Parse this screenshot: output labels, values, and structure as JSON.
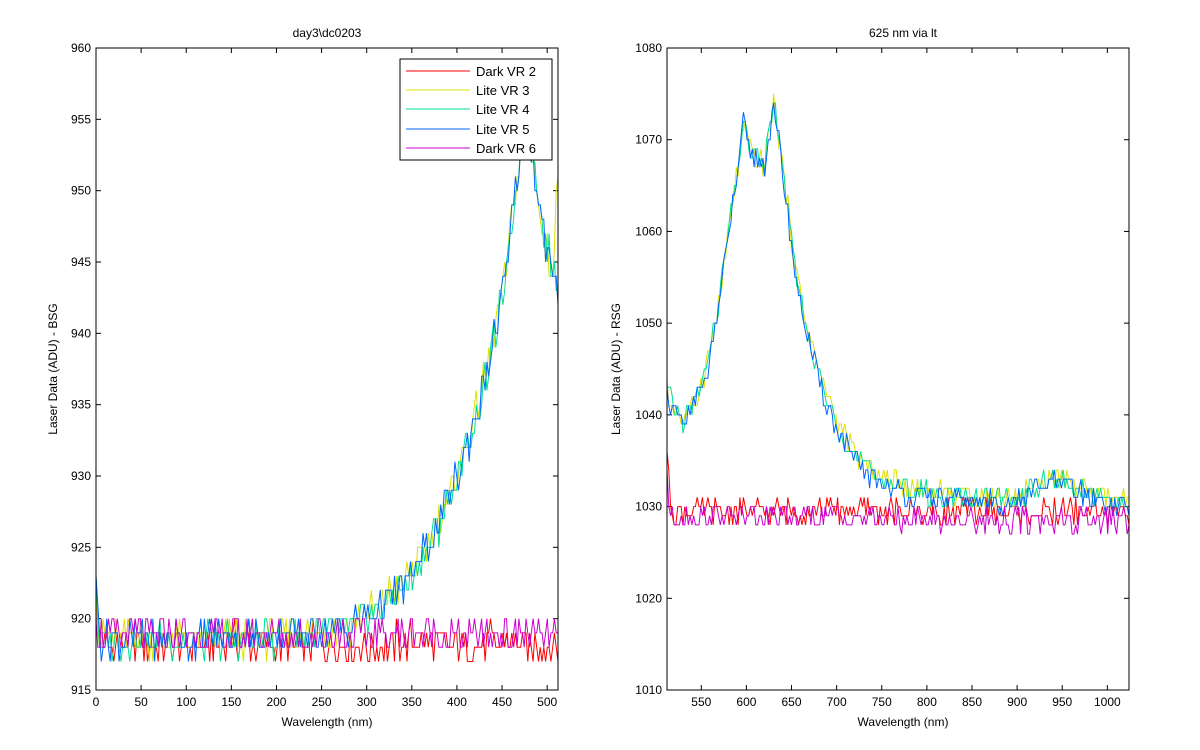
{
  "chart_data": [
    {
      "type": "line",
      "title": "day3\\dc0203",
      "xlabel": "Wavelength (nm)",
      "ylabel": "Laser Data (ADU) - BSG",
      "xlim": [
        0,
        512
      ],
      "ylim": [
        915,
        960
      ],
      "xticks": [
        0,
        50,
        100,
        150,
        200,
        250,
        300,
        350,
        400,
        450,
        500
      ],
      "yticks": [
        915,
        920,
        925,
        930,
        935,
        940,
        945,
        950,
        955,
        960
      ],
      "legend_position": "top-right",
      "grid": false,
      "series": [
        {
          "name": "Dark VR 2",
          "color": "#ff0000",
          "x": [
            0,
            2,
            10,
            50,
            100,
            150,
            200,
            250,
            300,
            350,
            400,
            450,
            500,
            512
          ],
          "y": [
            924,
            918.5,
            918.2,
            918.3,
            918.0,
            918.4,
            918.1,
            918.3,
            918.2,
            918.4,
            918.1,
            918.3,
            918.2,
            918.0
          ]
        },
        {
          "name": "Lite VR 3",
          "color": "#e0e000",
          "x": [
            0,
            3,
            50,
            100,
            150,
            200,
            250,
            280,
            300,
            320,
            340,
            360,
            380,
            400,
            420,
            440,
            455,
            465,
            475,
            485,
            495,
            505,
            512
          ],
          "y": [
            924,
            918.5,
            918.6,
            918.5,
            918.6,
            918.6,
            919.0,
            919.5,
            920.3,
            921.3,
            922.5,
            924.3,
            926.8,
            930.0,
            934.0,
            939.5,
            944.5,
            950.5,
            954.0,
            952.0,
            947.0,
            944.0,
            950.5
          ]
        },
        {
          "name": "Lite VR 4",
          "color": "#00e090",
          "x": [
            0,
            3,
            50,
            100,
            150,
            200,
            250,
            280,
            300,
            320,
            340,
            360,
            380,
            400,
            420,
            440,
            455,
            465,
            475,
            485,
            495,
            505,
            512
          ],
          "y": [
            924,
            918.4,
            918.6,
            918.5,
            918.6,
            918.6,
            919.0,
            919.4,
            920.1,
            921.0,
            922.2,
            924.0,
            926.5,
            929.8,
            933.8,
            939.2,
            944.0,
            950.0,
            954.5,
            952.5,
            947.5,
            944.5,
            943.5
          ]
        },
        {
          "name": "Lite VR 5",
          "color": "#0066ff",
          "x": [
            0,
            3,
            50,
            100,
            150,
            200,
            250,
            280,
            300,
            320,
            340,
            360,
            380,
            400,
            420,
            440,
            455,
            465,
            475,
            485,
            495,
            505,
            512
          ],
          "y": [
            924,
            918.5,
            918.7,
            918.6,
            918.7,
            918.7,
            919.1,
            919.5,
            920.2,
            921.1,
            922.3,
            924.1,
            926.6,
            929.9,
            933.9,
            939.3,
            944.2,
            950.2,
            954.2,
            952.2,
            947.2,
            944.2,
            943.0
          ]
        },
        {
          "name": "Dark VR 6",
          "color": "#cc00cc",
          "x": [
            0,
            2,
            10,
            50,
            100,
            150,
            200,
            250,
            300,
            350,
            400,
            450,
            500,
            512
          ],
          "y": [
            921,
            918.8,
            918.8,
            918.9,
            918.8,
            918.9,
            918.8,
            918.9,
            918.8,
            918.9,
            918.8,
            918.9,
            918.8,
            918.8
          ]
        }
      ]
    },
    {
      "type": "line",
      "title": "625 nm via lt",
      "xlabel": "Wavelength (nm)",
      "ylabel": "Laser Data (ADU) - RSG",
      "xlim": [
        512,
        1024
      ],
      "ylim": [
        1010,
        1080
      ],
      "xticks": [
        550,
        600,
        650,
        700,
        750,
        800,
        850,
        900,
        950,
        1000
      ],
      "yticks": [
        1010,
        1020,
        1030,
        1040,
        1050,
        1060,
        1070,
        1080
      ],
      "grid": false,
      "series": [
        {
          "name": "Dark VR 2",
          "color": "#ff0000",
          "x": [
            512,
            515,
            520,
            550,
            600,
            650,
            700,
            750,
            800,
            850,
            900,
            950,
            1000,
            1024
          ],
          "y": [
            1036,
            1031,
            1029.5,
            1029.5,
            1029.6,
            1029.5,
            1029.6,
            1029.5,
            1029.4,
            1029.5,
            1029.4,
            1029.5,
            1029.5,
            1029.3
          ]
        },
        {
          "name": "Lite VR 3",
          "color": "#e0e000",
          "x": [
            512,
            520,
            530,
            540,
            550,
            560,
            570,
            580,
            590,
            597,
            602,
            610,
            620,
            630,
            640,
            650,
            660,
            670,
            680,
            690,
            700,
            720,
            740,
            760,
            780,
            800,
            850,
            900,
            920,
            940,
            960,
            980,
            1000,
            1024
          ],
          "y": [
            1042.5,
            1040.5,
            1039.5,
            1041,
            1043.5,
            1047,
            1052.5,
            1060,
            1066.5,
            1071.5,
            1069.5,
            1068,
            1067,
            1074,
            1067.5,
            1059,
            1053,
            1048.5,
            1045,
            1042,
            1039.5,
            1036,
            1034,
            1032.8,
            1032.2,
            1031.8,
            1031.2,
            1031.0,
            1032.5,
            1033.3,
            1032.6,
            1031.5,
            1030.8,
            1030.5
          ]
        },
        {
          "name": "Lite VR 4",
          "color": "#00e090",
          "x": [
            512,
            520,
            530,
            540,
            550,
            560,
            570,
            580,
            590,
            597,
            602,
            610,
            620,
            630,
            640,
            650,
            660,
            670,
            680,
            690,
            700,
            720,
            740,
            760,
            780,
            800,
            850,
            900,
            920,
            940,
            960,
            980,
            1000,
            1024
          ],
          "y": [
            1042.5,
            1040.3,
            1039.3,
            1040.8,
            1043.3,
            1046.8,
            1052.3,
            1060,
            1066.3,
            1072.5,
            1069.3,
            1068,
            1067,
            1074.5,
            1067.2,
            1058.5,
            1052.5,
            1048,
            1044.5,
            1041.5,
            1039,
            1035.5,
            1033.5,
            1032.5,
            1031.8,
            1031.4,
            1030.9,
            1030.8,
            1032.2,
            1032.9,
            1032.3,
            1031.2,
            1030.5,
            1030.2
          ]
        },
        {
          "name": "Lite VR 5",
          "color": "#0066ff",
          "x": [
            512,
            520,
            530,
            540,
            550,
            560,
            570,
            580,
            590,
            597,
            602,
            610,
            620,
            630,
            640,
            650,
            660,
            670,
            680,
            690,
            700,
            720,
            740,
            760,
            780,
            800,
            850,
            900,
            920,
            940,
            960,
            980,
            1000,
            1024
          ],
          "y": [
            1042.3,
            1040.0,
            1039.0,
            1040.5,
            1043.0,
            1046.5,
            1052.0,
            1059.5,
            1066.0,
            1071.8,
            1069.0,
            1068,
            1067,
            1073.5,
            1066.8,
            1058.0,
            1052.0,
            1047.5,
            1044.0,
            1041.0,
            1038.5,
            1035.0,
            1033.0,
            1032.0,
            1031.3,
            1031.0,
            1030.5,
            1030.4,
            1031.8,
            1032.5,
            1032.0,
            1031.0,
            1030.3,
            1030.0
          ]
        },
        {
          "name": "Dark VR 6",
          "color": "#cc00cc",
          "x": [
            512,
            515,
            520,
            550,
            600,
            650,
            700,
            750,
            800,
            850,
            900,
            950,
            1000,
            1024
          ],
          "y": [
            1034,
            1029.5,
            1029.0,
            1029.0,
            1028.9,
            1029.0,
            1028.8,
            1028.7,
            1028.6,
            1028.5,
            1028.6,
            1028.5,
            1028.4,
            1028.3
          ]
        }
      ]
    }
  ]
}
